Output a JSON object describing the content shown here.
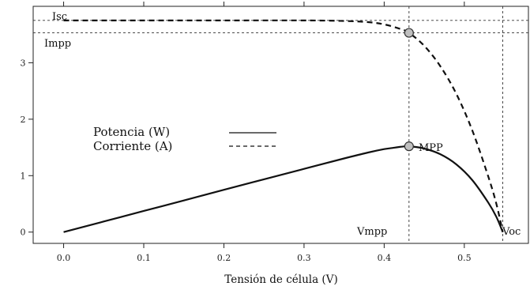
{
  "chart_data": {
    "type": "line",
    "xlabel": "Tensión de célula (V)",
    "ylabel": "",
    "xlim": [
      -0.038,
      0.58
    ],
    "ylim": [
      -0.2,
      4.0
    ],
    "x_ticks": [
      0.0,
      0.1,
      0.2,
      0.3,
      0.4,
      0.5
    ],
    "x_tick_labels": [
      "0.0",
      "0.1",
      "0.2",
      "0.3",
      "0.4",
      "0.5"
    ],
    "y_ticks": [
      0,
      1,
      2,
      3
    ],
    "y_tick_labels": [
      "0",
      "1",
      "2",
      "3"
    ],
    "grid": false,
    "legend_position": "center-left",
    "series": [
      {
        "name": "Potencia (W)",
        "style": "solid",
        "x": [
          0.0,
          0.05,
          0.1,
          0.15,
          0.2,
          0.25,
          0.3,
          0.35,
          0.38,
          0.4,
          0.41,
          0.42,
          0.431,
          0.45,
          0.47,
          0.49,
          0.51,
          0.53,
          0.54,
          0.548
        ],
        "y": [
          0.0,
          0.187,
          0.375,
          0.56,
          0.75,
          0.935,
          1.12,
          1.305,
          1.41,
          1.47,
          1.49,
          1.51,
          1.52,
          1.48,
          1.38,
          1.2,
          0.92,
          0.52,
          0.27,
          0.0
        ]
      },
      {
        "name": "Corriente (A)",
        "style": "dashed",
        "x": [
          0.0,
          0.1,
          0.2,
          0.3,
          0.35,
          0.38,
          0.4,
          0.42,
          0.431,
          0.45,
          0.47,
          0.49,
          0.51,
          0.53,
          0.54,
          0.548
        ],
        "y": [
          3.75,
          3.75,
          3.75,
          3.75,
          3.74,
          3.72,
          3.68,
          3.6,
          3.53,
          3.3,
          2.94,
          2.45,
          1.8,
          0.98,
          0.5,
          0.0
        ]
      }
    ],
    "reference_lines": {
      "horizontal": [
        {
          "label": "Isc",
          "y": 3.75
        },
        {
          "label": "Impp",
          "y": 3.53
        }
      ],
      "vertical": [
        {
          "label": "Vmpp",
          "x": 0.431
        },
        {
          "label": "Voc",
          "x": 0.548
        }
      ]
    },
    "points": [
      {
        "x": 0.431,
        "y": 1.52,
        "label": "MPP"
      },
      {
        "x": 0.431,
        "y": 3.53,
        "label": ""
      }
    ],
    "colors": {
      "line": "#111111",
      "point_fill": "#c0c0c0",
      "reference_line": "#333333"
    }
  }
}
